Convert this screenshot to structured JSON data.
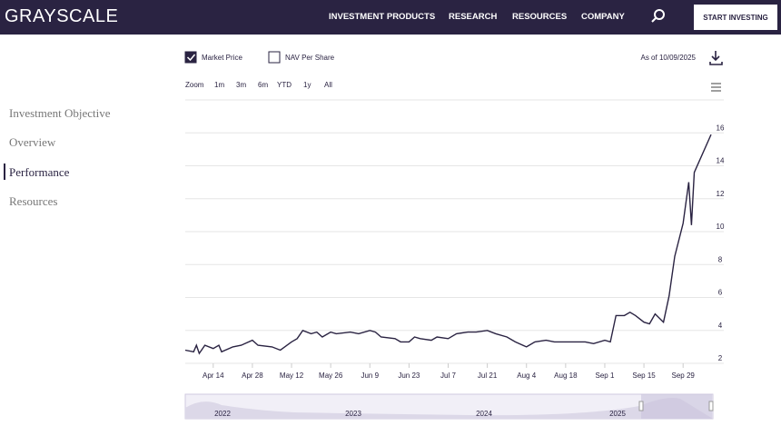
{
  "header": {
    "logo": "GRAYSCALE",
    "nav": [
      "INVESTMENT PRODUCTS",
      "RESEARCH",
      "RESOURCES",
      "COMPANY"
    ],
    "cta": "START INVESTING"
  },
  "sidebar": {
    "items": [
      "Investment Objective",
      "Overview",
      "Performance",
      "Resources"
    ],
    "active": 2
  },
  "controls": {
    "market_price_checked": true,
    "nav_label": "NAV Per Share",
    "nav_checked": false,
    "as_of": "As of 10/09/2025",
    "zoom_label": "Zoom",
    "ranges": [
      "1m",
      "3m",
      "6m",
      "YTD",
      "1y",
      "All"
    ]
  },
  "chart_data": {
    "type": "line",
    "x": [
      "Apr 4",
      "Apr 7",
      "Apr 8",
      "Apr 9",
      "Apr 11",
      "Apr 14",
      "Apr 16",
      "Apr 17",
      "Apr 21",
      "Apr 24",
      "Apr 28",
      "Apr 30",
      "May 5",
      "May 8",
      "May 12",
      "May 14",
      "May 16",
      "May 19",
      "May 21",
      "May 23",
      "May 26",
      "May 28",
      "Jun 2",
      "Jun 5",
      "Jun 9",
      "Jun 11",
      "Jun 13",
      "Jun 18",
      "Jun 20",
      "Jun 23",
      "Jun 25",
      "Jun 27",
      "Jul 1",
      "Jul 3",
      "Jul 7",
      "Jul 10",
      "Jul 14",
      "Jul 17",
      "Jul 21",
      "Jul 24",
      "Jul 28",
      "Jul 31",
      "Aug 4",
      "Aug 7",
      "Aug 11",
      "Aug 14",
      "Aug 18",
      "Aug 21",
      "Aug 25",
      "Aug 28",
      "Sep 1",
      "Sep 3",
      "Sep 5",
      "Sep 8",
      "Sep 10",
      "Sep 12",
      "Sep 15",
      "Sep 17",
      "Sep 19",
      "Sep 22",
      "Sep 24",
      "Sep 26",
      "Sep 29",
      "Oct 1",
      "Oct 2",
      "Oct 3",
      "Oct 9"
    ],
    "series": [
      {
        "name": "Market Price",
        "color": "#2a2342",
        "values": [
          2.8,
          2.7,
          3.1,
          2.6,
          3.1,
          2.9,
          3.1,
          2.7,
          3.0,
          3.1,
          3.4,
          3.1,
          3.0,
          2.8,
          3.3,
          3.5,
          4.0,
          3.8,
          3.9,
          3.6,
          3.9,
          3.8,
          3.9,
          3.8,
          4.0,
          3.9,
          3.6,
          3.5,
          3.3,
          3.3,
          3.6,
          3.5,
          3.4,
          3.6,
          3.5,
          3.8,
          3.9,
          3.9,
          4.0,
          3.8,
          3.6,
          3.3,
          3.0,
          3.3,
          3.4,
          3.3,
          3.3,
          3.3,
          3.3,
          3.2,
          3.4,
          3.3,
          4.9,
          4.9,
          5.1,
          4.9,
          4.5,
          4.4,
          5.0,
          4.5,
          6.1,
          8.5,
          10.5,
          13.0,
          10.4,
          13.6,
          15.9
        ]
      }
    ],
    "xlim": [
      "Apr 4",
      "Oct 9"
    ],
    "xticks": [
      "Apr 14",
      "Apr 28",
      "May 12",
      "May 26",
      "Jun 9",
      "Jun 23",
      "Jul 7",
      "Jul 21",
      "Aug 4",
      "Aug 18",
      "Sep 1",
      "Sep 15",
      "Sep 29"
    ],
    "ylim": [
      2,
      18
    ],
    "yticks": [
      2,
      4,
      6,
      8,
      10,
      12,
      14,
      16
    ],
    "grid": true
  },
  "navigator": {
    "years": [
      "2022",
      "2023",
      "2024",
      "2025"
    ]
  }
}
